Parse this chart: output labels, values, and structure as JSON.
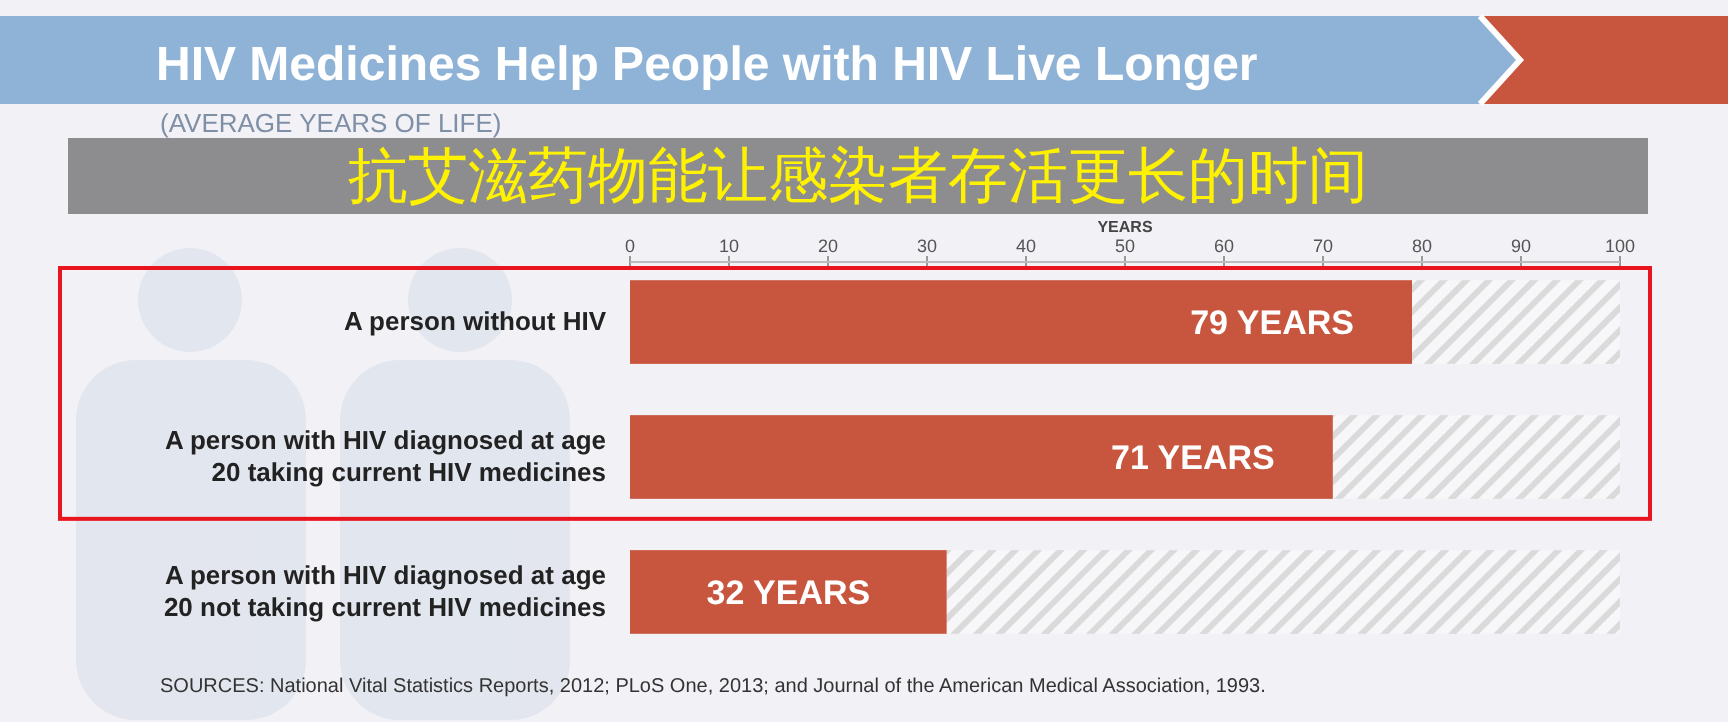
{
  "chart_data": {
    "type": "bar",
    "orientation": "horizontal",
    "stacked": true,
    "title": "HIV Medicines Help People with HIV Live Longer",
    "subtitle": "(AVERAGE YEARS OF LIFE)",
    "xlabel": "YEARS",
    "categories": [
      "A person without HIV",
      "A person with HIV diagnosed at age 20 taking current HIV medicines",
      "A person with HIV diagnosed at age 20 not taking current HIV medicines"
    ],
    "series": [
      {
        "color": "#c8553d",
        "values": [
          79,
          71,
          32
        ],
        "value_labels": [
          "79 YEARS",
          "71 YEARS",
          "32 YEARS"
        ]
      },
      {
        "color": "#dadada",
        "values": [
          21,
          29,
          68
        ]
      }
    ],
    "xlim": [
      0,
      100
    ],
    "xticks": [
      0,
      10,
      20,
      30,
      40,
      50,
      60,
      70,
      80,
      90,
      100
    ],
    "grid": false,
    "annotations": [
      "抗艾滋药物能让感染者存活更长的时间",
      "SOURCES: National Vital Statistics Reports, 2012; PLoS One, 2013; and Journal of the American Medical Association, 1993."
    ]
  }
}
